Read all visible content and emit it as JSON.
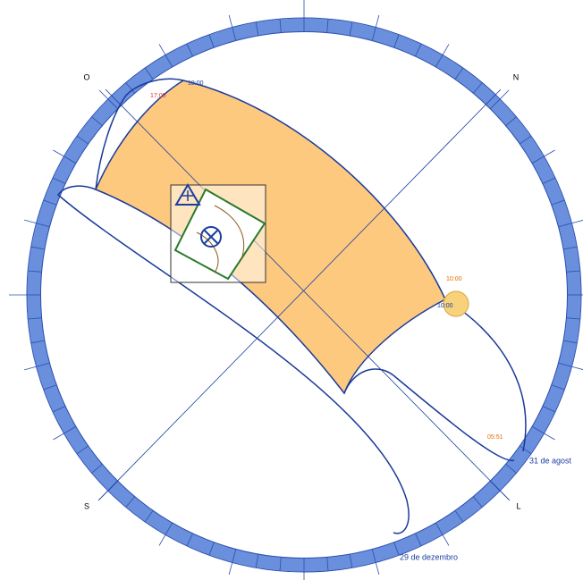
{
  "compass": {
    "west": "O",
    "north": "N",
    "south": "S",
    "east": "L"
  },
  "time_labels": [
    "18:00",
    "17:00",
    "10:00",
    "10:00",
    "05:51"
  ],
  "date_labels": [
    "31 de agost",
    "29 de dezembro"
  ]
}
